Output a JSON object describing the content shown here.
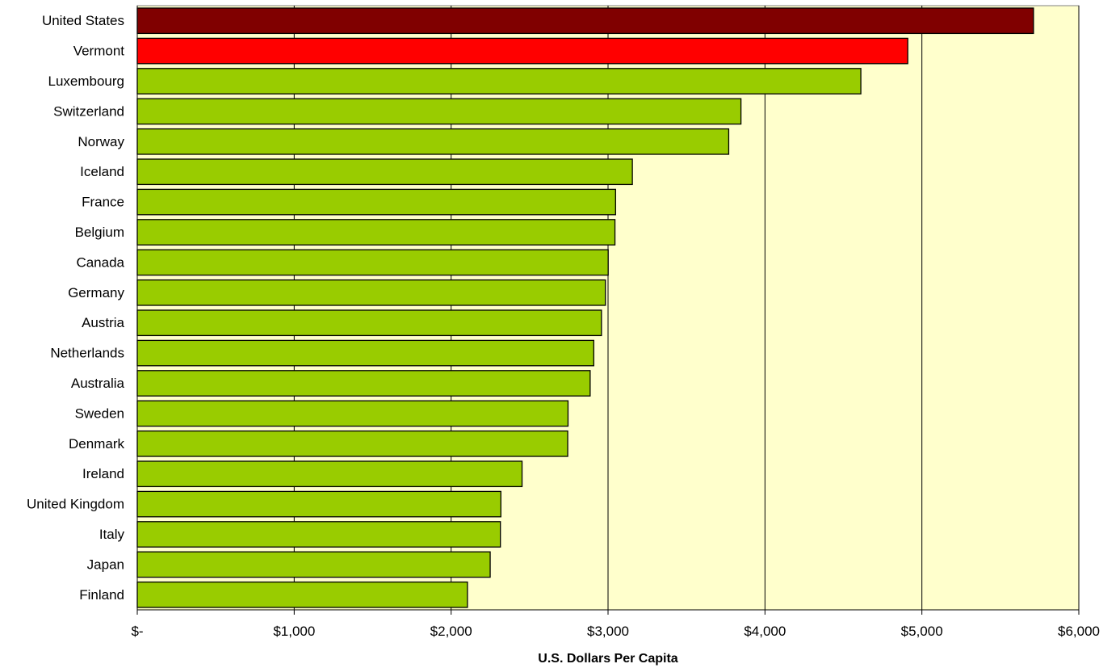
{
  "chart_data": {
    "type": "bar",
    "orientation": "horizontal",
    "xlabel": "U.S. Dollars Per Capita",
    "ylabel": "",
    "xlim": [
      0,
      6000
    ],
    "grid": "vertical",
    "legend": "none",
    "x_ticks": [
      0,
      1000,
      2000,
      3000,
      4000,
      5000,
      6000
    ],
    "x_tick_labels": [
      "$-",
      "$1,000",
      "$2,000",
      "$3,000",
      "$4,000",
      "$5,000",
      "$6,000"
    ],
    "categories": [
      "United States",
      "Vermont",
      "Luxembourg",
      "Switzerland",
      "Norway",
      "Iceland",
      "France",
      "Belgium",
      "Canada",
      "Germany",
      "Austria",
      "Netherlands",
      "Australia",
      "Sweden",
      "Denmark",
      "Ireland",
      "United Kingdom",
      "Italy",
      "Japan",
      "Finland"
    ],
    "values": [
      5711,
      4910,
      4611,
      3847,
      3769,
      3155,
      3048,
      3044,
      3001,
      2983,
      2958,
      2909,
      2886,
      2745,
      2743,
      2452,
      2317,
      2314,
      2249,
      2104
    ],
    "colors": [
      "#800000",
      "#ff0000",
      "#99cc00",
      "#99cc00",
      "#99cc00",
      "#99cc00",
      "#99cc00",
      "#99cc00",
      "#99cc00",
      "#99cc00",
      "#99cc00",
      "#99cc00",
      "#99cc00",
      "#99cc00",
      "#99cc00",
      "#99cc00",
      "#99cc00",
      "#99cc00",
      "#99cc00",
      "#99cc00"
    ],
    "plot_background": "#ffffcc"
  }
}
